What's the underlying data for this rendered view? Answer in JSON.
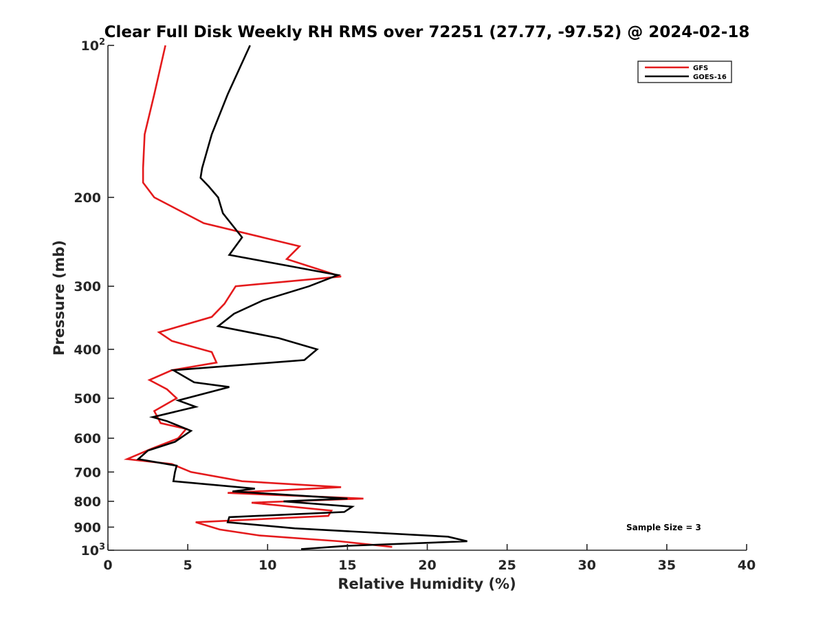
{
  "chart_data": {
    "type": "line",
    "title": "Clear Full Disk Weekly RH RMS over 72251 (27.77, -97.52) @ 2024-02-18",
    "xlabel": "Relative Humidity (%)",
    "ylabel": "Pressure (mb)",
    "xlim": [
      0,
      40
    ],
    "ylim": [
      100,
      1000
    ],
    "y_scale": "log",
    "y_reversed": true,
    "grid": false,
    "legend_position": "top-right",
    "x_ticks": [
      "0",
      "5",
      "10",
      "15",
      "20",
      "25",
      "30",
      "35",
      "40"
    ],
    "y_ticks": [
      {
        "value": 100,
        "label": "10",
        "exp": "2"
      },
      {
        "value": 200,
        "label": "200",
        "exp": ""
      },
      {
        "value": 300,
        "label": "300",
        "exp": ""
      },
      {
        "value": 400,
        "label": "400",
        "exp": ""
      },
      {
        "value": 500,
        "label": "500",
        "exp": ""
      },
      {
        "value": 600,
        "label": "600",
        "exp": ""
      },
      {
        "value": 700,
        "label": "700",
        "exp": ""
      },
      {
        "value": 800,
        "label": "800",
        "exp": ""
      },
      {
        "value": 900,
        "label": "900",
        "exp": ""
      },
      {
        "value": 1000,
        "label": "10",
        "exp": "3"
      }
    ],
    "annotation": "Sample Size = 3",
    "series": [
      {
        "name": "GFS",
        "color": "#e41a1c",
        "points": [
          [
            3.6,
            100
          ],
          [
            2.9,
            125
          ],
          [
            2.3,
            150
          ],
          [
            2.2,
            175
          ],
          [
            2.2,
            187
          ],
          [
            2.9,
            200
          ],
          [
            6.0,
            225
          ],
          [
            12.0,
            250
          ],
          [
            11.2,
            265
          ],
          [
            14.6,
            287
          ],
          [
            8.0,
            300
          ],
          [
            7.3,
            325
          ],
          [
            6.5,
            345
          ],
          [
            3.2,
            370
          ],
          [
            4.0,
            385
          ],
          [
            6.5,
            405
          ],
          [
            6.8,
            425
          ],
          [
            4.0,
            440
          ],
          [
            2.6,
            460
          ],
          [
            3.7,
            480
          ],
          [
            4.3,
            500
          ],
          [
            2.9,
            530
          ],
          [
            3.3,
            560
          ],
          [
            4.9,
            575
          ],
          [
            4.4,
            600
          ],
          [
            2.7,
            630
          ],
          [
            1.2,
            660
          ],
          [
            4.0,
            675
          ],
          [
            5.2,
            700
          ],
          [
            8.4,
            730
          ],
          [
            14.6,
            750
          ],
          [
            7.5,
            770
          ],
          [
            16.0,
            790
          ],
          [
            9.0,
            805
          ],
          [
            14.0,
            835
          ],
          [
            13.8,
            855
          ],
          [
            5.5,
            880
          ],
          [
            7.0,
            910
          ],
          [
            9.5,
            935
          ],
          [
            14.5,
            960
          ],
          [
            17.8,
            985
          ]
        ]
      },
      {
        "name": "GOES-16",
        "color": "#000000",
        "points": [
          [
            8.9,
            100
          ],
          [
            7.5,
            125
          ],
          [
            6.5,
            150
          ],
          [
            5.9,
            175
          ],
          [
            5.8,
            183
          ],
          [
            6.3,
            190
          ],
          [
            6.9,
            200
          ],
          [
            7.2,
            215
          ],
          [
            8.4,
            240
          ],
          [
            7.6,
            260
          ],
          [
            14.4,
            285
          ],
          [
            12.6,
            300
          ],
          [
            9.7,
            320
          ],
          [
            7.9,
            340
          ],
          [
            6.9,
            360
          ],
          [
            10.7,
            380
          ],
          [
            13.1,
            400
          ],
          [
            12.3,
            420
          ],
          [
            4.1,
            440
          ],
          [
            5.4,
            465
          ],
          [
            7.6,
            475
          ],
          [
            4.4,
            505
          ],
          [
            5.5,
            520
          ],
          [
            2.8,
            545
          ],
          [
            3.7,
            555
          ],
          [
            5.2,
            580
          ],
          [
            4.2,
            610
          ],
          [
            2.5,
            635
          ],
          [
            1.9,
            660
          ],
          [
            4.3,
            680
          ],
          [
            4.2,
            700
          ],
          [
            4.1,
            730
          ],
          [
            9.2,
            755
          ],
          [
            7.8,
            765
          ],
          [
            15.0,
            790
          ],
          [
            11.0,
            800
          ],
          [
            15.3,
            820
          ],
          [
            14.8,
            840
          ],
          [
            7.6,
            860
          ],
          [
            7.5,
            880
          ],
          [
            11.7,
            905
          ],
          [
            21.3,
            940
          ],
          [
            22.5,
            960
          ],
          [
            15.0,
            980
          ],
          [
            12.1,
            995
          ]
        ]
      }
    ]
  }
}
